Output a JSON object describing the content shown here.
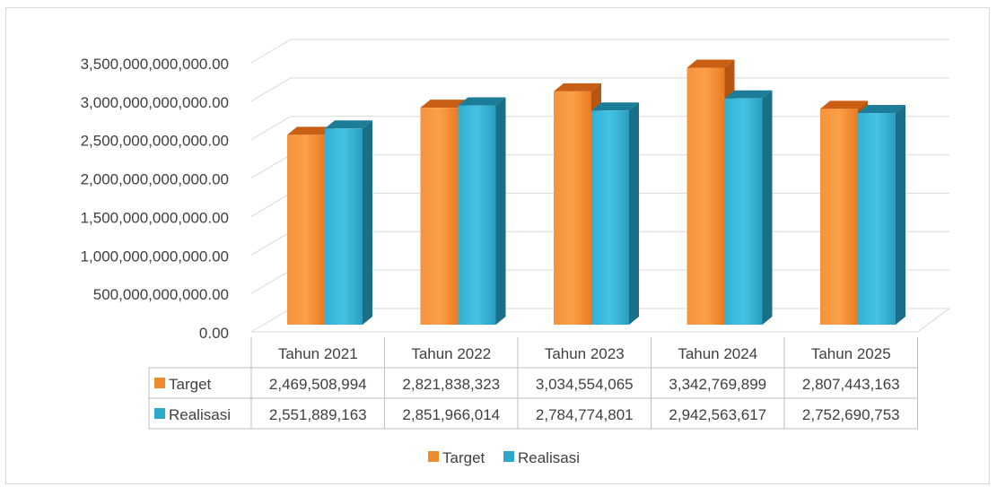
{
  "chart_data": {
    "type": "bar",
    "title": "",
    "xlabel": "",
    "ylabel": "",
    "ylim": [
      0,
      3500000000000
    ],
    "y_ticks": [
      "0.00",
      "500,000,000,000.00",
      "1,000,000,000,000.00",
      "1,500,000,000,000.00",
      "2,000,000,000,000.00",
      "2,500,000,000,000.00",
      "3,000,000,000,000.00",
      "3,500,000,000,000.00"
    ],
    "categories": [
      "Tahun 2021",
      "Tahun 2022",
      "Tahun 2023",
      "Tahun 2024",
      "Tahun 2025"
    ],
    "grid": true,
    "legend_position": "bottom",
    "style": "3d-clustered-column-with-data-table",
    "series": [
      {
        "name": "Target",
        "color": "#ED7D31",
        "values": [
          2469508994000,
          2821838323000,
          3034554065000,
          3342769899000,
          2807443163000
        ],
        "table_labels": [
          "2,469,508,994",
          "2,821,838,323",
          "3,034,554,065",
          "3,342,769,899",
          "2,807,443,163"
        ]
      },
      {
        "name": "Realisasi",
        "color": "#2EA8C9",
        "values": [
          2551889163000,
          2851966014000,
          2784774801000,
          2942563617000,
          2752690753000
        ],
        "table_labels": [
          "2,551,889,163",
          "2,851,966,014",
          "2,784,774,801",
          "2,942,563,617",
          "2,752,690,753"
        ]
      }
    ]
  }
}
